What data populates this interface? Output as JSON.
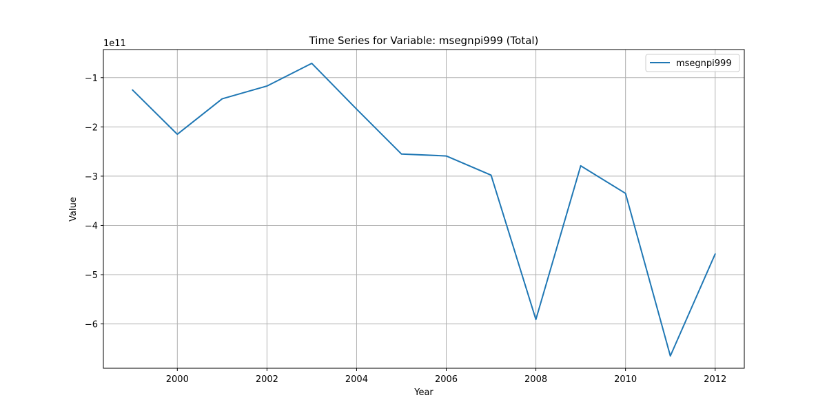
{
  "chart_data": {
    "type": "line",
    "title": "Time Series for Variable: msegnpi999 (Total)",
    "xlabel": "Year",
    "ylabel": "Value",
    "y_offset_label": "1e11",
    "y_multiplier": 100000000000.0,
    "xlim": [
      1998.35,
      2012.65
    ],
    "ylim": [
      -6.9,
      -0.43
    ],
    "x_ticks": [
      2000,
      2002,
      2004,
      2006,
      2008,
      2010,
      2012
    ],
    "y_ticks": [
      -6,
      -5,
      -4,
      -3,
      -2,
      -1
    ],
    "grid": true,
    "legend_position": "top-right",
    "series": [
      {
        "name": "msegnpi999",
        "color": "#1f77b4",
        "x": [
          1999,
          2000,
          2001,
          2002,
          2003,
          2004,
          2005,
          2006,
          2007,
          2008,
          2009,
          2010,
          2011,
          2012
        ],
        "y": [
          -1.25,
          -2.15,
          -1.43,
          -1.17,
          -0.71,
          -1.64,
          -2.55,
          -2.59,
          -2.98,
          -5.91,
          -2.79,
          -3.35,
          -6.65,
          -4.58
        ]
      }
    ]
  }
}
